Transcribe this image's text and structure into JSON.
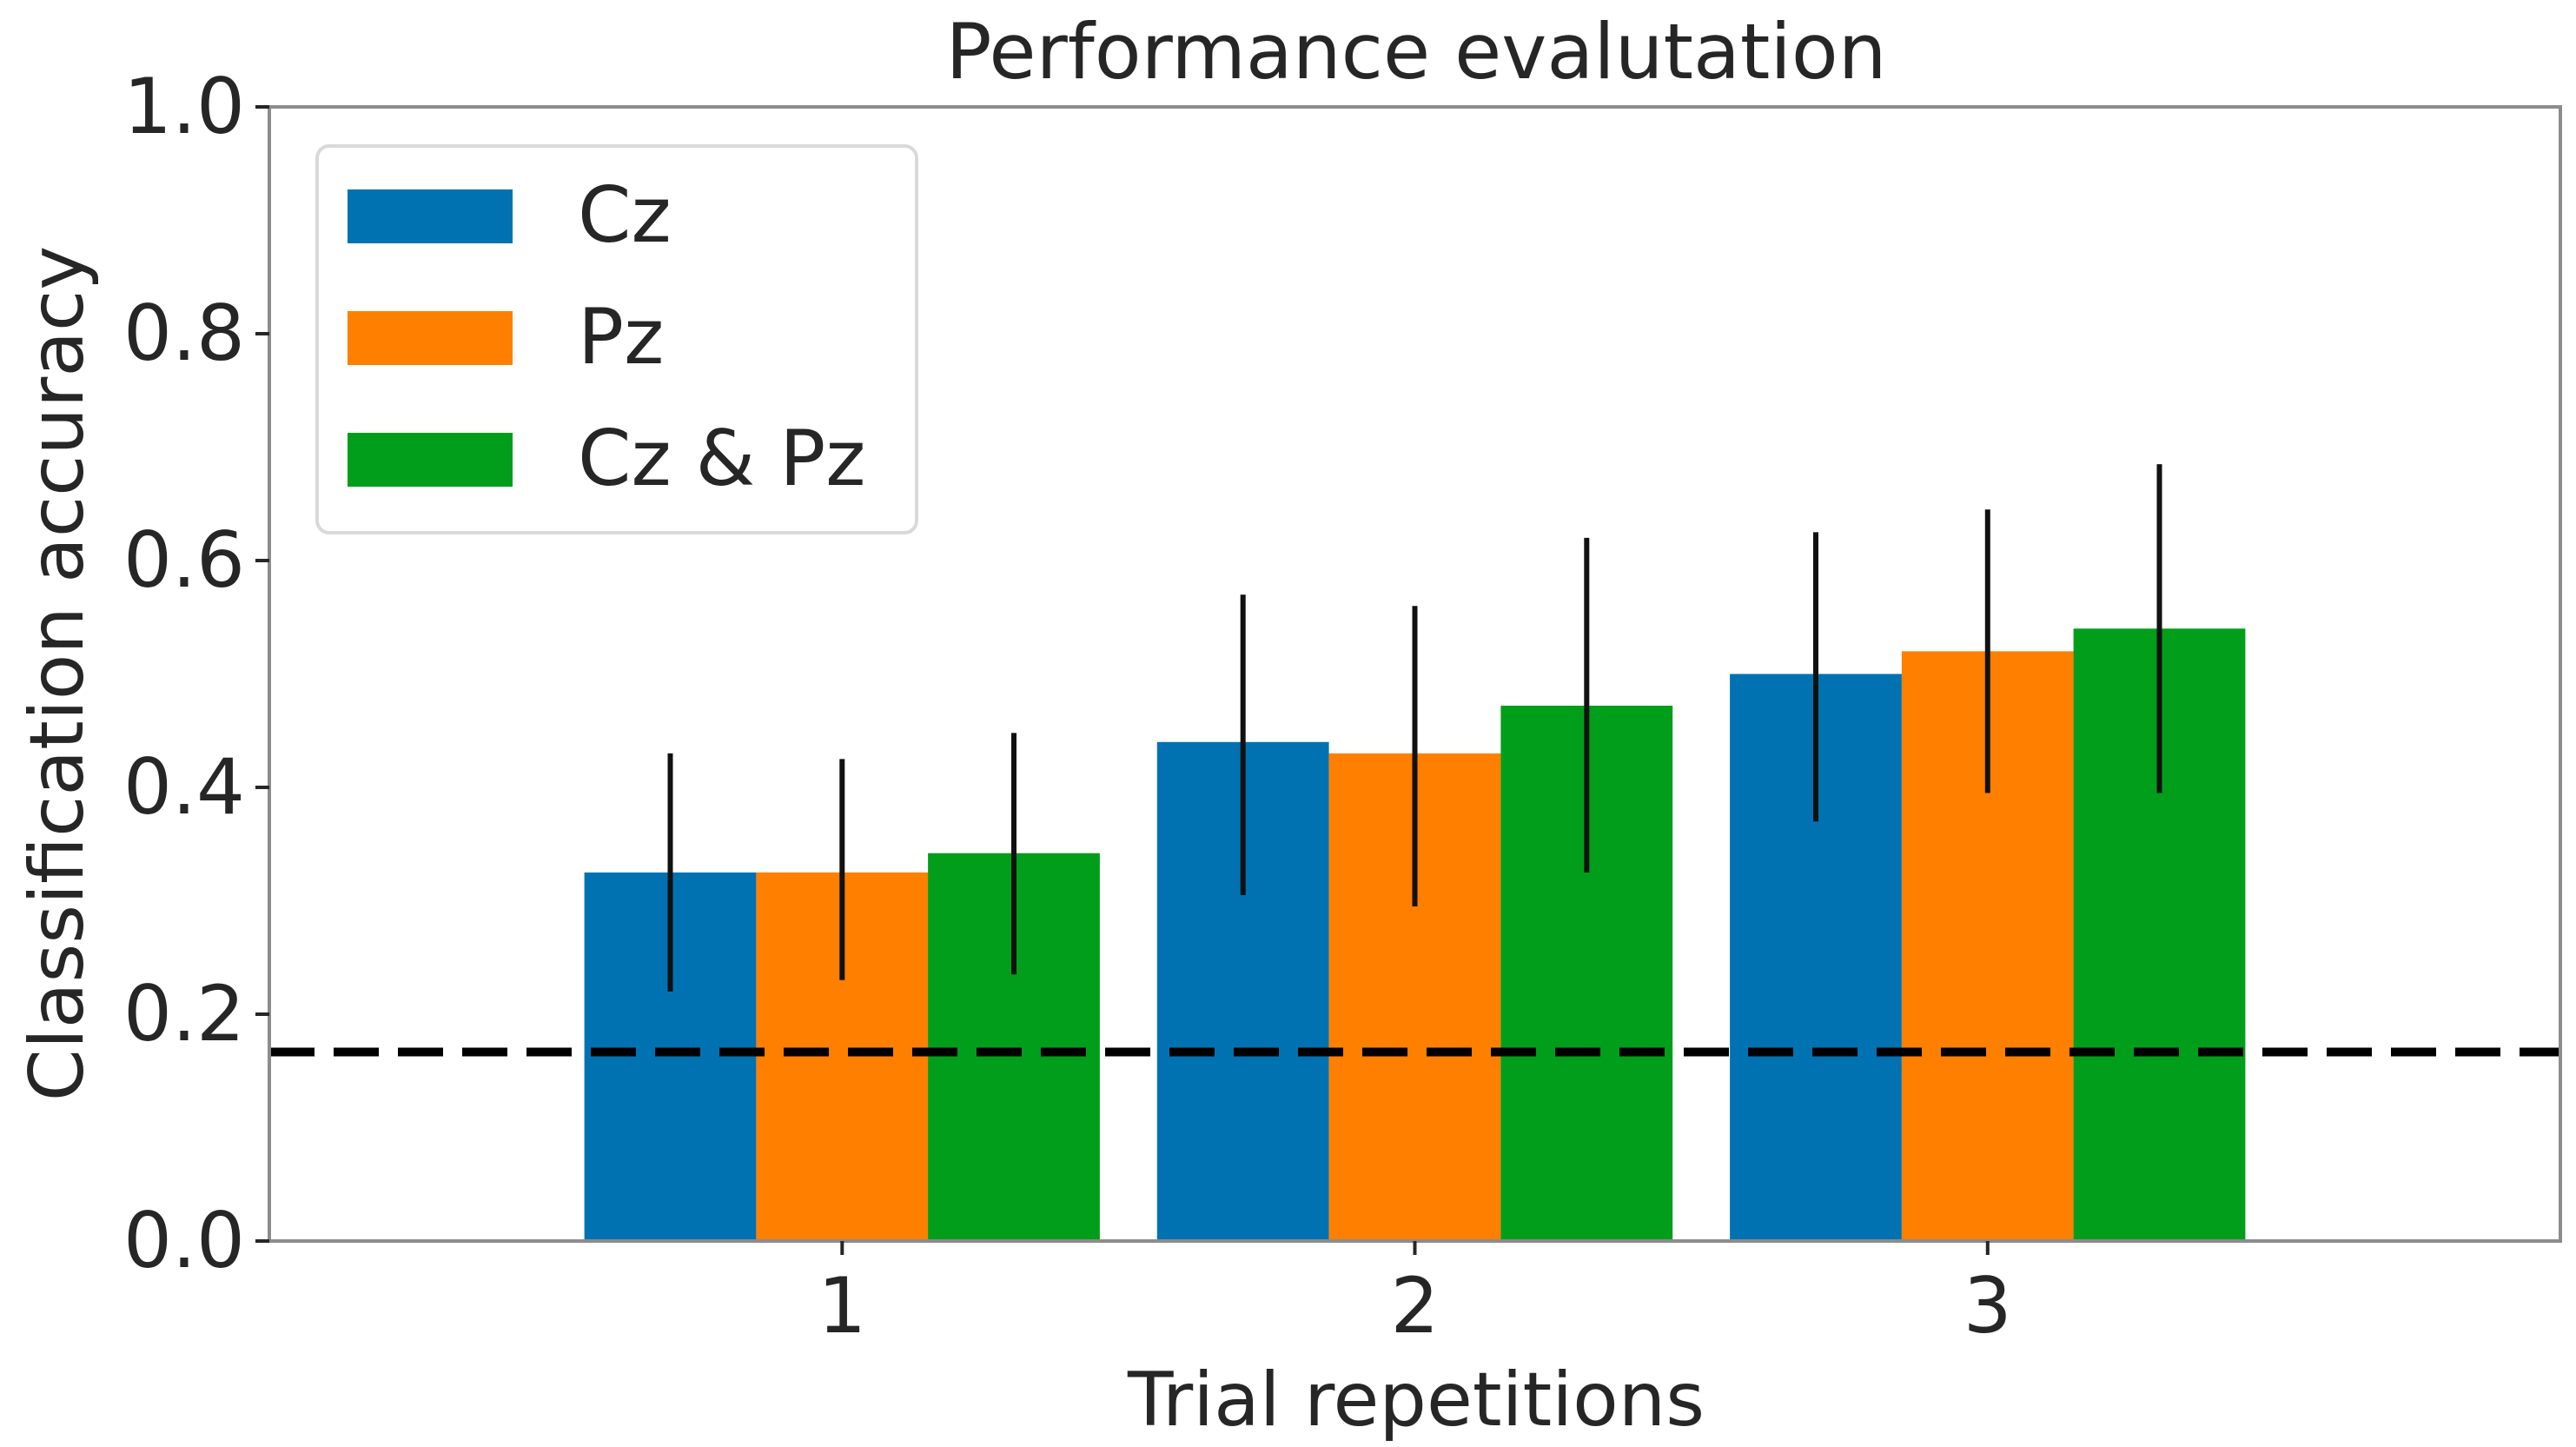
{
  "chart_data": {
    "type": "bar",
    "title": "Performance evalutation",
    "xlabel": "Trial repetitions",
    "ylabel": "Classification accuracy",
    "categories": [
      "1",
      "2",
      "3"
    ],
    "ylim": [
      0.0,
      1.0
    ],
    "xlim": [
      0.0,
      4.0
    ],
    "yticks": [
      "0.0",
      "0.2",
      "0.4",
      "0.6",
      "0.8",
      "1.0"
    ],
    "series": [
      {
        "name": "Cz",
        "color": "#0072b2",
        "values": [
          0.325,
          0.44,
          0.5
        ],
        "error_low": [
          0.22,
          0.305,
          0.37
        ],
        "error_high": [
          0.43,
          0.57,
          0.625
        ]
      },
      {
        "name": "Pz",
        "color": "#ff7f00",
        "values": [
          0.325,
          0.43,
          0.52
        ],
        "error_low": [
          0.23,
          0.295,
          0.395
        ],
        "error_high": [
          0.425,
          0.56,
          0.645
        ]
      },
      {
        "name": "Cz & Pz",
        "color": "#009e1a",
        "values": [
          0.342,
          0.472,
          0.54
        ],
        "error_low": [
          0.235,
          0.325,
          0.395
        ],
        "error_high": [
          0.448,
          0.62,
          0.685
        ]
      }
    ],
    "reference_line": {
      "value": 0.1667,
      "style": "dashed",
      "color": "#000000"
    },
    "legend": {
      "position": "top-left"
    },
    "grid": false
  }
}
